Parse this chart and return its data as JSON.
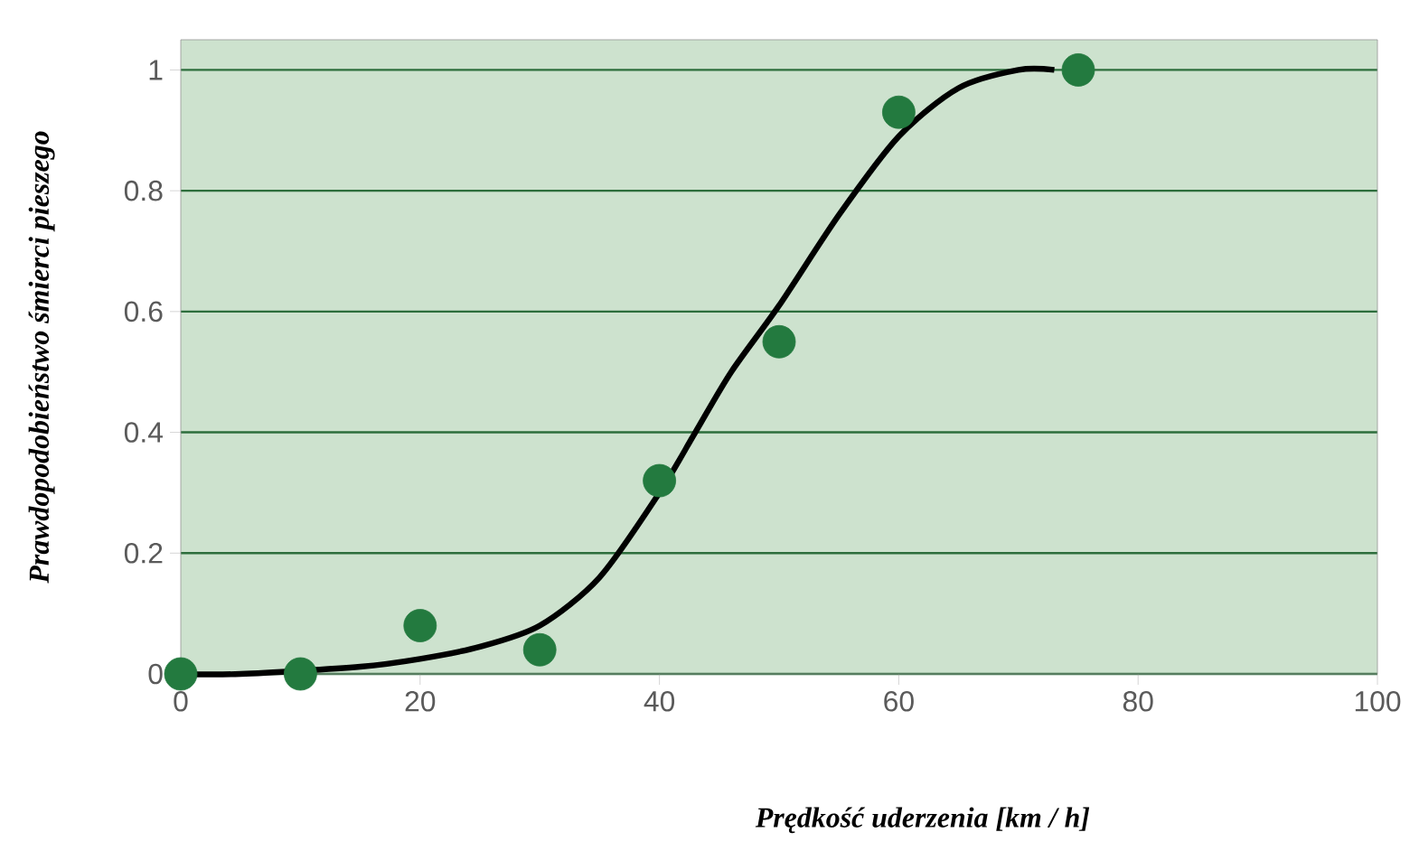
{
  "chart_data": {
    "type": "scatter",
    "xlabel": "Prędkość uderzenia [km / h]",
    "ylabel": "Prawdopodobieństwo śmierci pieszego",
    "xlim": [
      0,
      100
    ],
    "ylim": [
      0,
      1.05
    ],
    "xticks": [
      0,
      20,
      40,
      60,
      80,
      100
    ],
    "yticks": [
      0,
      0.2,
      0.4,
      0.6,
      0.8,
      1
    ],
    "grid": "y",
    "series": [
      {
        "type": "line",
        "marker": "none",
        "color": "#000000",
        "x": [
          0,
          5,
          15,
          20,
          25,
          30,
          35,
          40,
          43,
          46,
          50,
          55,
          60,
          65,
          70,
          73
        ],
        "values": [
          0,
          0,
          0.012,
          0.025,
          0.045,
          0.08,
          0.16,
          0.3,
          0.4,
          0.5,
          0.61,
          0.76,
          0.89,
          0.97,
          1.0,
          1.0
        ]
      },
      {
        "type": "scatter",
        "marker": "circle",
        "color": "#237a3f",
        "x": [
          0,
          10,
          20,
          30,
          40,
          50,
          60,
          75
        ],
        "values": [
          0,
          0,
          0.08,
          0.04,
          0.32,
          0.55,
          0.93,
          1.0
        ]
      }
    ]
  }
}
